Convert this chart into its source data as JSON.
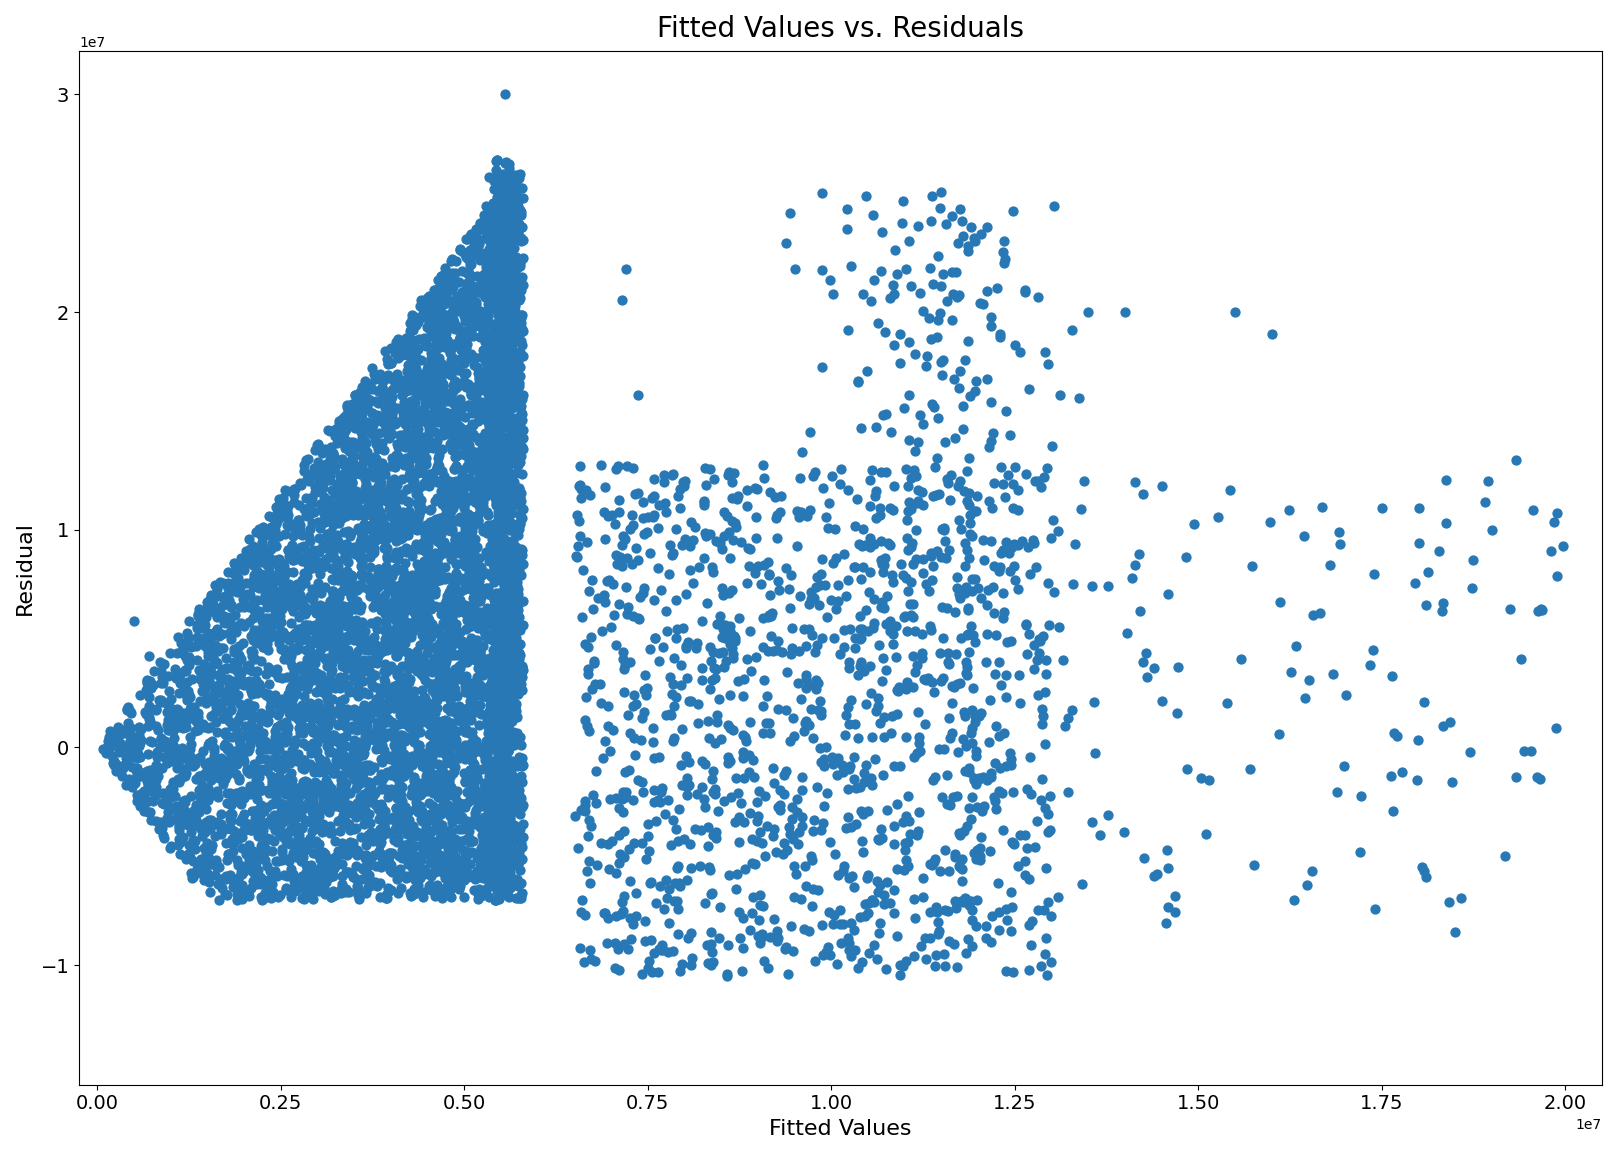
{
  "title": "Fitted Values vs. Residuals",
  "xlabel": "Fitted Values",
  "ylabel": "Residual",
  "xlim": [
    -250000.0,
    20500000.0
  ],
  "ylim": [
    -15500000.0,
    32000000.0
  ],
  "dot_color": "#2878b5",
  "dot_size": 55,
  "dot_alpha": 1.0,
  "background_color": "#ffffff",
  "title_fontsize": 20,
  "label_fontsize": 16,
  "tick_fontsize": 14,
  "seed": 42
}
